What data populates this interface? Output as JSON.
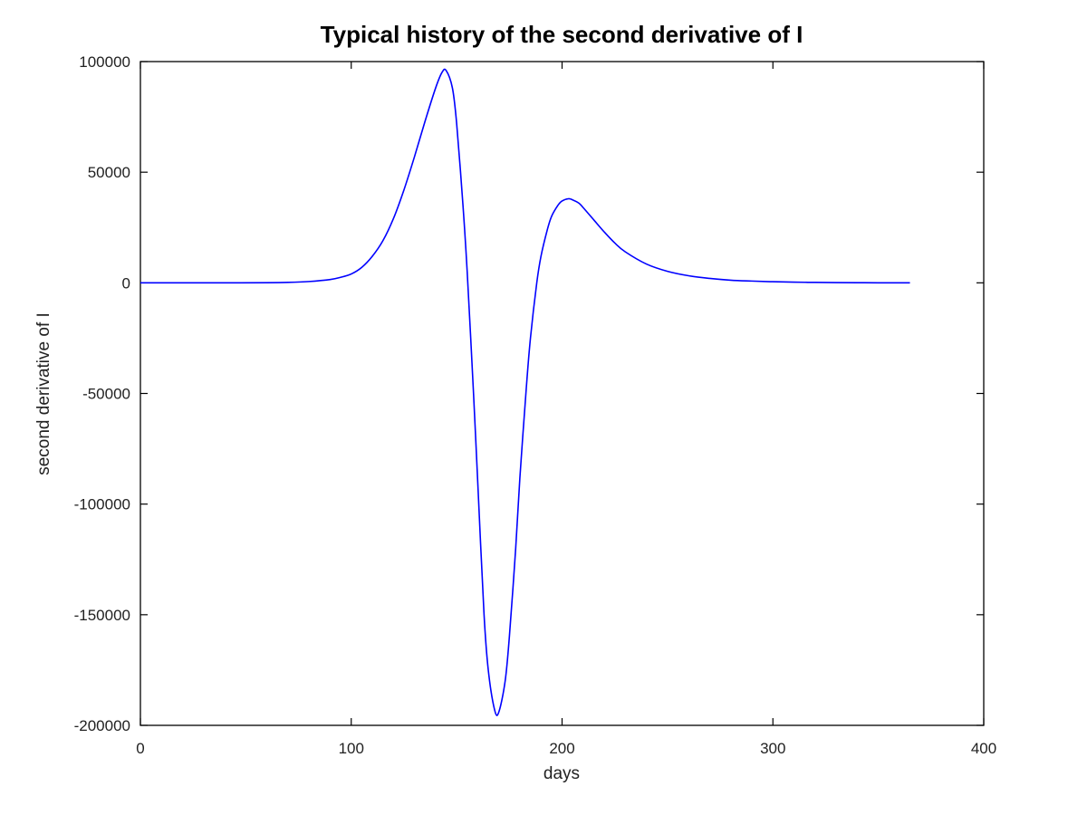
{
  "chart_data": {
    "type": "line",
    "title": "Typical history of the second derivative of I",
    "xlabel": "days",
    "ylabel": "second derivative of I",
    "xlim": [
      0,
      400
    ],
    "ylim": [
      -200000,
      100000
    ],
    "x_ticks": [
      0,
      100,
      200,
      300,
      400
    ],
    "y_ticks": [
      100000,
      50000,
      0,
      -50000,
      -100000,
      -150000,
      -200000
    ],
    "grid": false,
    "line_color": "#0000ff",
    "series": [
      {
        "x": [
          0,
          20,
          40,
          60,
          70,
          80,
          90,
          95,
          100,
          105,
          110,
          115,
          120,
          125,
          130,
          135,
          140,
          143,
          145,
          148,
          150,
          153,
          155,
          158,
          160,
          163,
          165,
          168,
          170,
          173,
          175,
          178,
          180,
          183,
          185,
          188,
          190,
          193,
          195,
          198,
          200,
          203,
          205,
          208,
          210,
          215,
          220,
          225,
          230,
          240,
          250,
          260,
          270,
          280,
          290,
          300,
          310,
          320,
          330,
          340,
          350,
          365
        ],
        "y": [
          0,
          0,
          0,
          50,
          200,
          600,
          1500,
          2500,
          4000,
          7000,
          12000,
          19000,
          29000,
          42000,
          57000,
          73000,
          88000,
          95000,
          96000,
          88000,
          72000,
          35000,
          5000,
          -50000,
          -90000,
          -150000,
          -175000,
          -193000,
          -194000,
          -180000,
          -160000,
          -120000,
          -88000,
          -48000,
          -25000,
          0,
          12000,
          24000,
          30000,
          35000,
          37000,
          38000,
          37500,
          36000,
          34000,
          28500,
          23000,
          18000,
          14000,
          8500,
          5200,
          3200,
          2000,
          1200,
          800,
          500,
          300,
          200,
          100,
          50,
          20,
          0
        ]
      }
    ]
  }
}
